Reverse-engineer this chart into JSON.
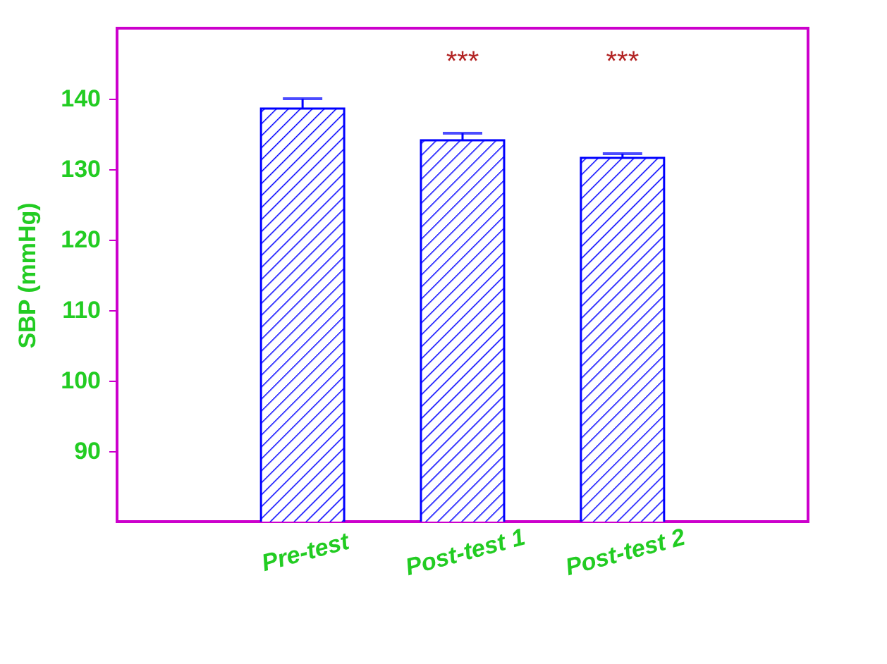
{
  "chart_data": {
    "type": "bar",
    "ylabel": "SBP (mmHg)",
    "categories": [
      "Pre-test",
      "Post-test 1",
      "Post-test 2"
    ],
    "values": [
      138.6,
      134.1,
      131.6
    ],
    "errors": [
      1.4,
      1.0,
      0.6
    ],
    "color": "#0000ff",
    "ylim": [
      80,
      150
    ],
    "yticks": [
      90,
      100,
      110,
      120,
      130,
      140
    ],
    "annotations": [
      "***",
      "***"
    ],
    "grid": false
  }
}
